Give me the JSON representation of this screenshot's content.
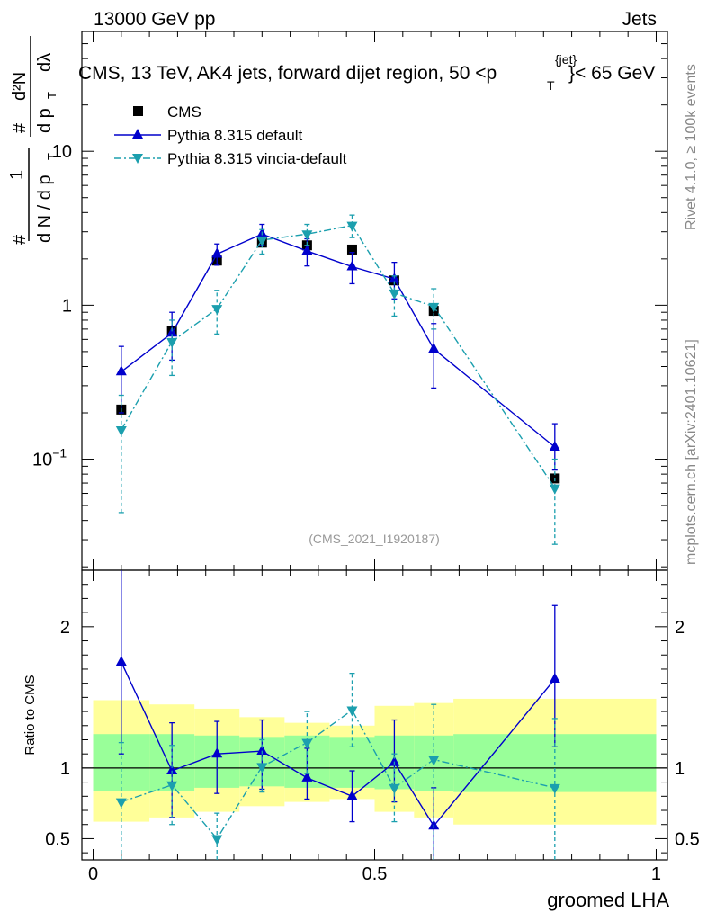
{
  "header": {
    "left": "13000 GeV pp",
    "right": "Jets",
    "title_main": "CMS, 13 TeV, AK4 jets, forward dijet region, 50 <p",
    "title_sub": "T",
    "title_sup": "{jet}",
    "title_tail": "}< 65 GeV"
  },
  "side_labels": {
    "rivet": "Rivet 4.1.0, ≥ 100k events",
    "mcplots": "mcplots.cern.ch [arXiv:2401.10621]"
  },
  "y_label": {
    "hash1": "#",
    "one": "1",
    "dN": "d N / d p",
    "T1": "T",
    "hash2": "#",
    "d2N": "d²N",
    "dpT": "d p",
    "T2": "T",
    "dlambda": "dλ"
  },
  "watermark": "(CMS_2021_I1920187)",
  "legend": {
    "cms": "CMS",
    "pythia": "Pythia 8.315 default",
    "vincia": "Pythia 8.315 vincia-default"
  },
  "colors": {
    "cms": "#000000",
    "pythia": "#0000cc",
    "vincia": "#1b9fae",
    "band_yellow": "#ffff99",
    "band_green": "#99ff99"
  },
  "chart_data": {
    "type": "scatter",
    "xlabel": "groomed LHA",
    "ylabel_ratio": "Ratio to CMS",
    "x_range": [
      -0.02,
      1.02
    ],
    "main": {
      "y_scale": "log",
      "y_range": [
        0.019,
        60
      ],
      "y_ticks": [
        {
          "value": 0.1,
          "base": "10",
          "exp": "−1"
        },
        {
          "value": 1,
          "label": "1"
        },
        {
          "value": 10,
          "label": "10"
        }
      ]
    },
    "ratio": {
      "y_range": [
        0.35,
        2.4
      ],
      "y_ticks": [
        {
          "value": 0.5,
          "label": "0.5"
        },
        {
          "value": 1,
          "label": "1"
        },
        {
          "value": 2,
          "label": "2"
        }
      ]
    },
    "x_ticks": [
      {
        "value": 0,
        "label": "0"
      },
      {
        "value": 0.5,
        "label": "0.5"
      },
      {
        "value": 1,
        "label": "1"
      }
    ],
    "bins": [
      {
        "lo": 0.0,
        "hi": 0.1
      },
      {
        "lo": 0.1,
        "hi": 0.18
      },
      {
        "lo": 0.18,
        "hi": 0.26
      },
      {
        "lo": 0.26,
        "hi": 0.34
      },
      {
        "lo": 0.34,
        "hi": 0.42
      },
      {
        "lo": 0.42,
        "hi": 0.5
      },
      {
        "lo": 0.5,
        "hi": 0.57
      },
      {
        "lo": 0.57,
        "hi": 0.64
      },
      {
        "lo": 0.64,
        "hi": 1.0
      }
    ],
    "x": [
      0.05,
      0.14,
      0.22,
      0.3,
      0.38,
      0.46,
      0.535,
      0.605,
      0.82
    ],
    "series": [
      {
        "name": "CMS",
        "values": [
          0.21,
          0.68,
          1.95,
          2.55,
          2.45,
          2.3,
          1.45,
          0.92,
          0.075
        ],
        "band_inner": [
          [
            0.84,
            1.24
          ],
          [
            0.84,
            1.24
          ],
          [
            0.86,
            1.23
          ],
          [
            0.87,
            1.22
          ],
          [
            0.86,
            1.23
          ],
          [
            0.86,
            1.22
          ],
          [
            0.85,
            1.23
          ],
          [
            0.84,
            1.23
          ],
          [
            0.83,
            1.24
          ]
        ],
        "band_outer": [
          [
            0.62,
            1.48
          ],
          [
            0.65,
            1.45
          ],
          [
            0.69,
            1.42
          ],
          [
            0.73,
            1.36
          ],
          [
            0.76,
            1.32
          ],
          [
            0.78,
            1.3
          ],
          [
            0.69,
            1.44
          ],
          [
            0.65,
            1.46
          ],
          [
            0.6,
            1.49
          ]
        ]
      },
      {
        "name": "Pythia 8.315 default",
        "values": [
          0.37,
          0.66,
          2.15,
          2.9,
          2.25,
          1.78,
          1.48,
          0.52,
          0.12
        ],
        "err_low": [
          0.2,
          0.44,
          1.82,
          2.45,
          1.8,
          1.38,
          1.1,
          0.29,
          0.085
        ],
        "err_high": [
          0.54,
          0.9,
          2.5,
          3.35,
          2.7,
          2.2,
          1.9,
          0.76,
          0.17
        ],
        "ratio": [
          1.75,
          0.98,
          1.1,
          1.12,
          0.93,
          0.8,
          1.04,
          0.59,
          1.63
        ],
        "ratio_low": [
          1.1,
          0.65,
          0.82,
          0.85,
          0.78,
          0.62,
          0.76,
          0.32,
          1.15
        ],
        "ratio_high": [
          2.4,
          1.32,
          1.33,
          1.34,
          1.14,
          0.98,
          1.34,
          0.86,
          2.15
        ]
      },
      {
        "name": "Pythia 8.315 vincia-default",
        "values": [
          0.155,
          0.58,
          0.95,
          2.65,
          2.9,
          3.3,
          1.2,
          0.98,
          0.065
        ],
        "err_low": [
          0.045,
          0.35,
          0.65,
          2.15,
          2.45,
          2.75,
          0.85,
          0.7,
          0.028
        ],
        "err_high": [
          0.26,
          0.8,
          1.25,
          3.1,
          3.35,
          3.85,
          1.55,
          1.28,
          0.1
        ],
        "ratio": [
          0.76,
          0.88,
          0.5,
          1.01,
          1.18,
          1.41,
          0.86,
          1.06,
          0.86
        ],
        "ratio_low": [
          0.35,
          0.6,
          0.35,
          0.83,
          0.96,
          1.15,
          0.62,
          0.35,
          0.35
        ],
        "ratio_high": [
          1.18,
          1.16,
          0.68,
          1.2,
          1.4,
          1.67,
          1.1,
          1.45,
          1.35
        ]
      }
    ]
  }
}
